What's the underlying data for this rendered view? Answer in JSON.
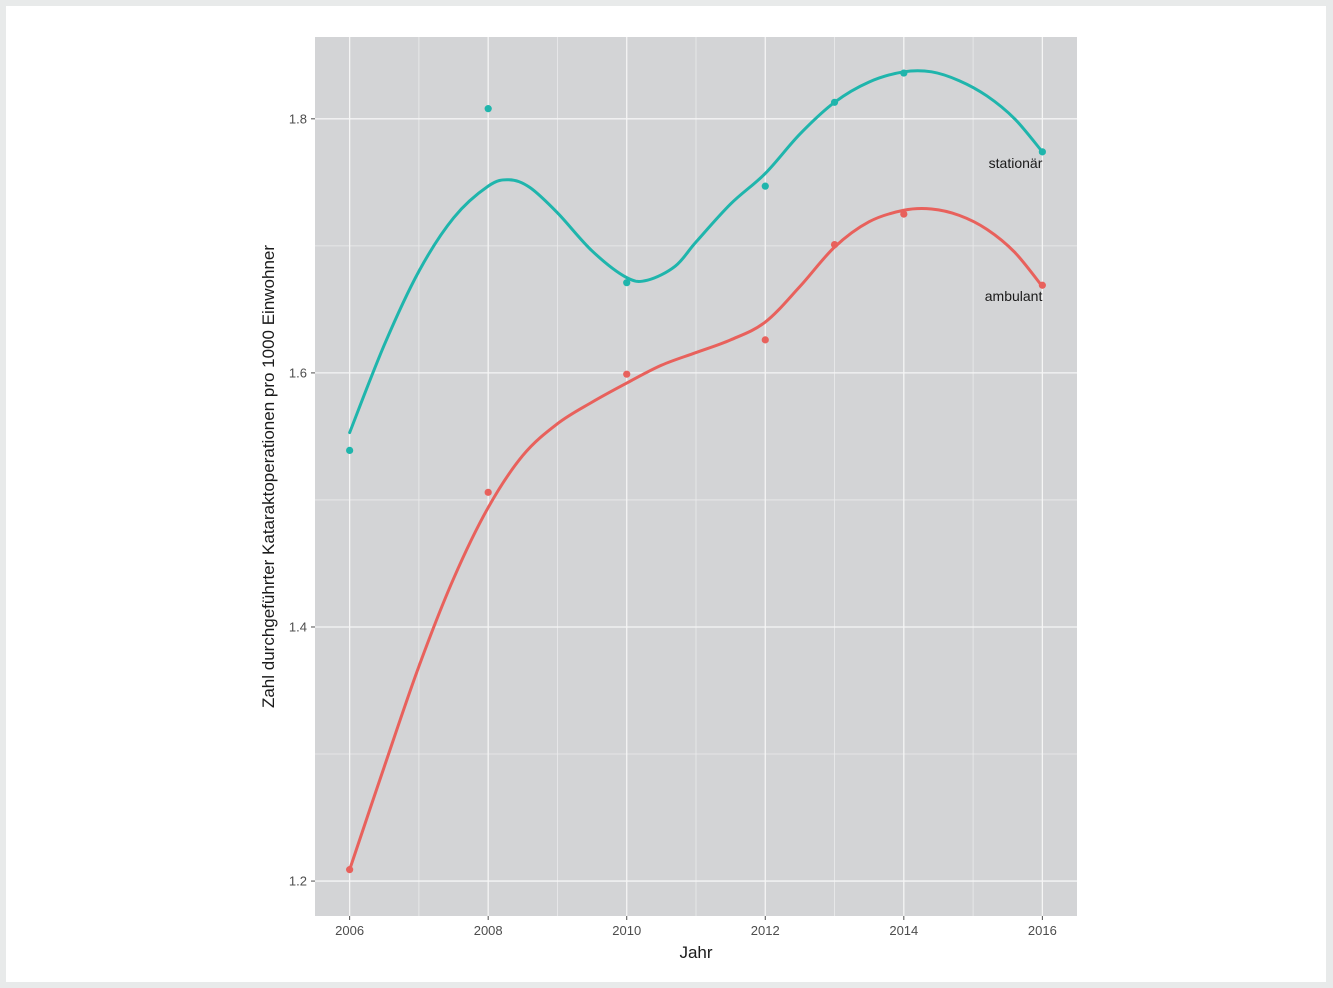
{
  "chart_data": {
    "type": "line",
    "xlabel": "Jahr",
    "ylabel": "Zahl durchgeführter Kataraktoperationen pro 1000 Einwohner",
    "xlim": [
      2005.5,
      2016.5
    ],
    "ylim": [
      1.1725,
      1.8644
    ],
    "x_ticks": [
      2006,
      2008,
      2010,
      2012,
      2014,
      2016
    ],
    "x_tick_labels": [
      "2006",
      "2008",
      "2010",
      "2012",
      "2014",
      "2016"
    ],
    "y_ticks": [
      1.2,
      1.4,
      1.6,
      1.8
    ],
    "y_tick_labels": [
      "1.2",
      "1.4",
      "1.6",
      "1.8"
    ],
    "grid": true,
    "panel_background": "#d3d4d6",
    "series": [
      {
        "name": "stationär",
        "color": "#1fb5ac",
        "points": [
          {
            "x": 2006,
            "y": 1.539
          },
          {
            "x": 2008,
            "y": 1.808
          },
          {
            "x": 2010,
            "y": 1.671
          },
          {
            "x": 2012,
            "y": 1.747
          },
          {
            "x": 2013,
            "y": 1.813
          },
          {
            "x": 2014,
            "y": 1.836
          },
          {
            "x": 2016,
            "y": 1.774
          }
        ],
        "smooth": [
          {
            "x": 2006,
            "y": 1.553
          },
          {
            "x": 2006.5,
            "y": 1.622
          },
          {
            "x": 2007,
            "y": 1.68
          },
          {
            "x": 2007.5,
            "y": 1.722
          },
          {
            "x": 2008,
            "y": 1.747
          },
          {
            "x": 2008.3,
            "y": 1.752
          },
          {
            "x": 2008.6,
            "y": 1.746
          },
          {
            "x": 2009,
            "y": 1.726
          },
          {
            "x": 2009.5,
            "y": 1.696
          },
          {
            "x": 2010,
            "y": 1.675
          },
          {
            "x": 2010.3,
            "y": 1.673
          },
          {
            "x": 2010.7,
            "y": 1.684
          },
          {
            "x": 2011,
            "y": 1.703
          },
          {
            "x": 2011.5,
            "y": 1.733
          },
          {
            "x": 2012,
            "y": 1.757
          },
          {
            "x": 2012.5,
            "y": 1.788
          },
          {
            "x": 2013,
            "y": 1.813
          },
          {
            "x": 2013.5,
            "y": 1.829
          },
          {
            "x": 2014,
            "y": 1.837
          },
          {
            "x": 2014.4,
            "y": 1.837
          },
          {
            "x": 2014.8,
            "y": 1.83
          },
          {
            "x": 2015.2,
            "y": 1.818
          },
          {
            "x": 2015.6,
            "y": 1.8
          },
          {
            "x": 2016,
            "y": 1.774
          }
        ]
      },
      {
        "name": "ambulant",
        "color": "#e8615c",
        "points": [
          {
            "x": 2006,
            "y": 1.209
          },
          {
            "x": 2008,
            "y": 1.506
          },
          {
            "x": 2010,
            "y": 1.599
          },
          {
            "x": 2012,
            "y": 1.626
          },
          {
            "x": 2013,
            "y": 1.701
          },
          {
            "x": 2014,
            "y": 1.725
          },
          {
            "x": 2016,
            "y": 1.669
          }
        ],
        "smooth": [
          {
            "x": 2006,
            "y": 1.209
          },
          {
            "x": 2006.5,
            "y": 1.29
          },
          {
            "x": 2007,
            "y": 1.369
          },
          {
            "x": 2007.5,
            "y": 1.438
          },
          {
            "x": 2008,
            "y": 1.494
          },
          {
            "x": 2008.5,
            "y": 1.535
          },
          {
            "x": 2009,
            "y": 1.56
          },
          {
            "x": 2009.5,
            "y": 1.577
          },
          {
            "x": 2010,
            "y": 1.592
          },
          {
            "x": 2010.5,
            "y": 1.606
          },
          {
            "x": 2011,
            "y": 1.616
          },
          {
            "x": 2011.5,
            "y": 1.626
          },
          {
            "x": 2012,
            "y": 1.64
          },
          {
            "x": 2012.5,
            "y": 1.668
          },
          {
            "x": 2013,
            "y": 1.699
          },
          {
            "x": 2013.5,
            "y": 1.719
          },
          {
            "x": 2014,
            "y": 1.728
          },
          {
            "x": 2014.4,
            "y": 1.729
          },
          {
            "x": 2014.8,
            "y": 1.724
          },
          {
            "x": 2015.2,
            "y": 1.713
          },
          {
            "x": 2015.6,
            "y": 1.695
          },
          {
            "x": 2016,
            "y": 1.668
          }
        ]
      }
    ]
  }
}
